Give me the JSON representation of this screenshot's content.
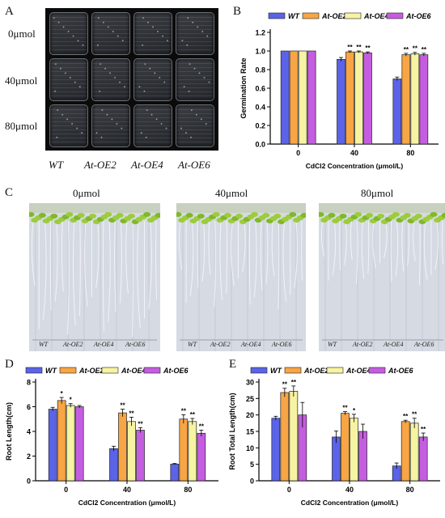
{
  "panels": {
    "A": "A",
    "B": "B",
    "C": "C",
    "D": "D",
    "E": "E"
  },
  "panel_a": {
    "row_labels": [
      "0μmol",
      "40μmol",
      "80μmol"
    ],
    "genotypes": [
      "WT",
      "At-OE2",
      "At-OE4",
      "At-OE6"
    ]
  },
  "panel_c": {
    "titles": [
      "0μmol",
      "40μmol",
      "80μmol"
    ],
    "captions": [
      [
        "WT",
        "At-OE2",
        "At-OE4",
        "At-OE6"
      ],
      [
        "WT",
        "At-OE2",
        "At-OE4",
        "At-OE6"
      ],
      [
        "WT",
        "At-OE2",
        "At-OE4",
        "At-OE6"
      ]
    ]
  },
  "colors": {
    "WT": "#5b63e8",
    "At-OE2": "#f7a545",
    "At-OE4": "#f6f3a2",
    "At-OE6": "#c55de0",
    "leaf": "#9ccc3c",
    "agar": "#cdd2dc"
  },
  "chart_data": [
    {
      "id": "B",
      "type": "bar",
      "categories": [
        "0",
        "40",
        "80"
      ],
      "series": [
        {
          "name": "WT",
          "values": [
            1.0,
            0.91,
            0.7
          ],
          "errors": [
            0.0,
            0.02,
            0.02
          ],
          "sig": [
            "",
            "",
            ""
          ]
        },
        {
          "name": "At-OE2",
          "values": [
            1.0,
            0.99,
            0.96
          ],
          "errors": [
            0.0,
            0.01,
            0.015
          ],
          "sig": [
            "",
            "**",
            "**"
          ]
        },
        {
          "name": "At-OE4",
          "values": [
            1.0,
            0.99,
            0.97
          ],
          "errors": [
            0.0,
            0.01,
            0.015
          ],
          "sig": [
            "",
            "**",
            "**"
          ]
        },
        {
          "name": "At-OE6",
          "values": [
            1.0,
            0.98,
            0.96
          ],
          "errors": [
            0.0,
            0.01,
            0.015
          ],
          "sig": [
            "",
            "**",
            "**"
          ]
        }
      ],
      "xlabel": "CdCl2 Concentration (μmol/L)",
      "ylabel": "Germination Rate",
      "ylim": [
        0,
        1.2
      ],
      "yticks": [
        "0.0",
        "0.2",
        "0.4",
        "0.6",
        "0.8",
        "1.0",
        "1.2"
      ],
      "legend": "top"
    },
    {
      "id": "D",
      "type": "bar",
      "categories": [
        "0",
        "40",
        "80"
      ],
      "series": [
        {
          "name": "WT",
          "values": [
            5.8,
            2.6,
            1.35
          ],
          "errors": [
            0.15,
            0.2,
            0.05
          ],
          "sig": [
            "",
            "",
            ""
          ]
        },
        {
          "name": "At-OE2",
          "values": [
            6.5,
            5.5,
            5.0
          ],
          "errors": [
            0.25,
            0.3,
            0.35
          ],
          "sig": [
            "*",
            "**",
            "**"
          ]
        },
        {
          "name": "At-OE4",
          "values": [
            6.1,
            4.8,
            4.8
          ],
          "errors": [
            0.15,
            0.35,
            0.25
          ],
          "sig": [
            "*",
            "**",
            "**"
          ]
        },
        {
          "name": "At-OE6",
          "values": [
            6.0,
            4.1,
            3.85
          ],
          "errors": [
            0.1,
            0.2,
            0.25
          ],
          "sig": [
            "",
            "**",
            "**"
          ]
        }
      ],
      "xlabel": "CdCl2 Concentration (μmol/L)",
      "ylabel": "Root Length(cm)",
      "ylim": [
        0,
        8
      ],
      "yticks": [
        "0",
        "2",
        "4",
        "6",
        "8"
      ],
      "legend": "top"
    },
    {
      "id": "E",
      "type": "bar",
      "categories": [
        "0",
        "40",
        "80"
      ],
      "series": [
        {
          "name": "WT",
          "values": [
            19.0,
            13.3,
            4.5
          ],
          "errors": [
            0.6,
            1.8,
            0.9
          ],
          "sig": [
            "",
            "",
            ""
          ]
        },
        {
          "name": "At-OE2",
          "values": [
            26.8,
            20.5,
            18.0
          ],
          "errors": [
            1.3,
            0.5,
            0.4
          ],
          "sig": [
            "**",
            "**",
            "**"
          ]
        },
        {
          "name": "At-OE4",
          "values": [
            27.2,
            19.0,
            17.5
          ],
          "errors": [
            1.6,
            1.2,
            1.5
          ],
          "sig": [
            "**",
            "*",
            "**"
          ]
        },
        {
          "name": "At-OE6",
          "values": [
            20.0,
            15.0,
            13.3
          ],
          "errors": [
            3.8,
            2.2,
            1.2
          ],
          "sig": [
            "",
            "",
            "**"
          ]
        }
      ],
      "xlabel": "CdCl2 Concentration (μmol/L)",
      "ylabel": "Root Total Length(cm)",
      "ylim": [
        0,
        30
      ],
      "yticks": [
        "0",
        "5",
        "10",
        "15",
        "20",
        "25",
        "30"
      ],
      "legend": "top"
    }
  ]
}
